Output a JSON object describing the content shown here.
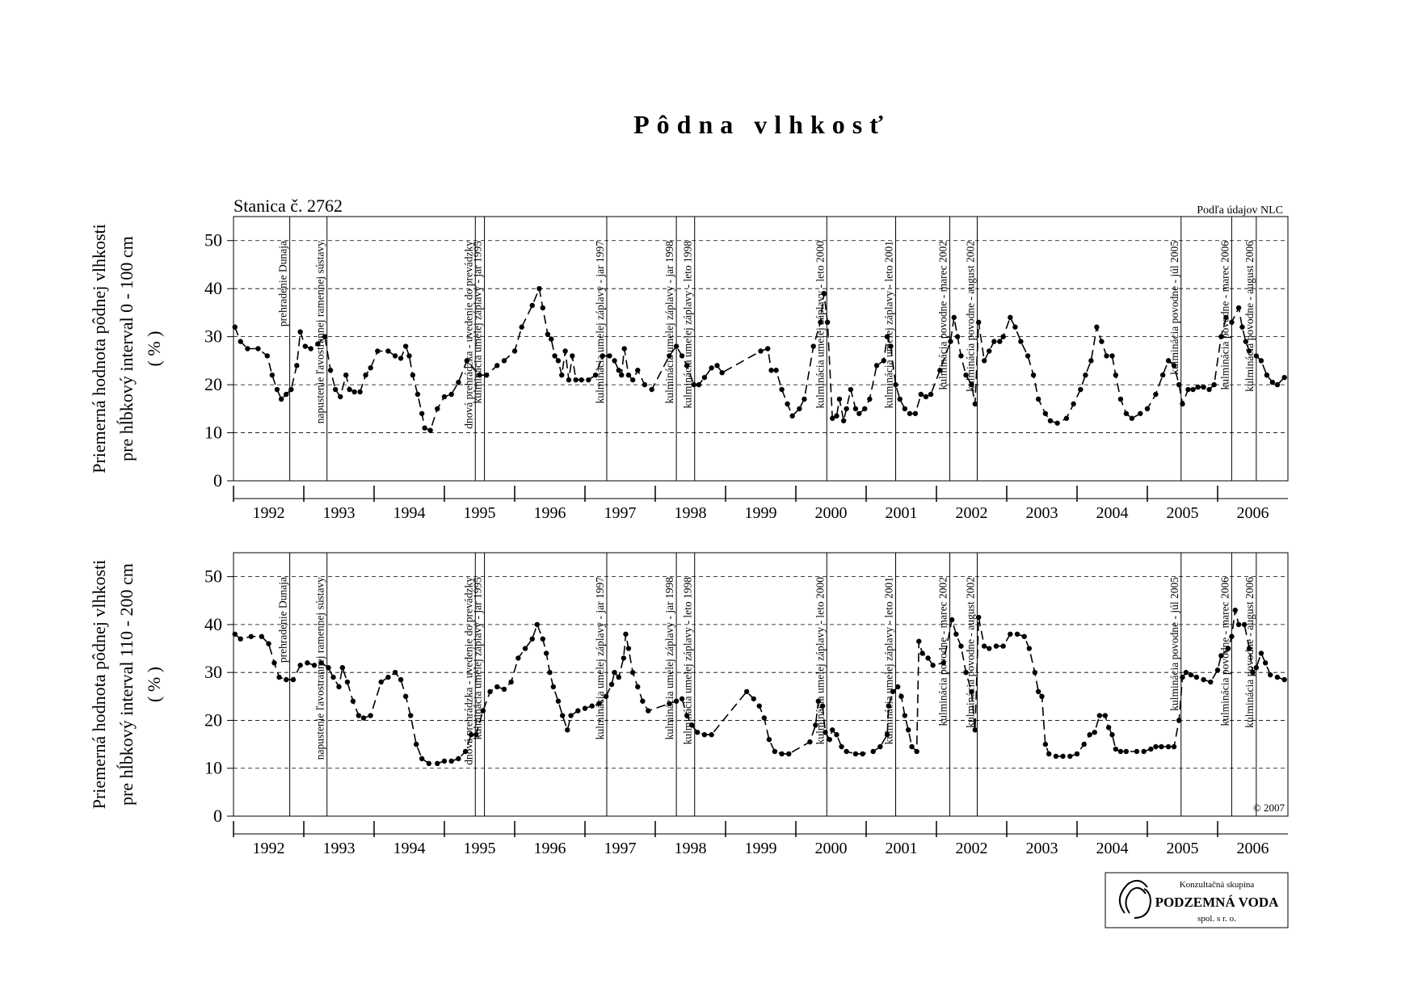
{
  "title": "Pôdna vlhkosť",
  "station": "Stanica č. 2762",
  "source": "Podľa údajov NLC",
  "copyright": "© 2007",
  "logo": {
    "line1": "Konzultačná skupina",
    "line2": "PODZEMNÁ VODA",
    "line3": "spol. s r. o."
  },
  "chart_data": [
    {
      "type": "line",
      "y_label": [
        "Priemerná hodnota pôdnej vlhkosti",
        "pre hĺbkový interval 0 - 100 cm",
        "( % )"
      ],
      "color": "#000000",
      "grid": true,
      "xlim": [
        1992,
        2007
      ],
      "ylim": [
        0,
        55
      ],
      "yticks": [
        0,
        10,
        20,
        30,
        40,
        50
      ],
      "xticks": [
        1992,
        1993,
        1994,
        1995,
        1996,
        1997,
        1998,
        1999,
        2000,
        2001,
        2002,
        2003,
        2004,
        2005,
        2006
      ],
      "annotations": [
        {
          "x": 1992.8,
          "label": "prehradenie Dunaja"
        },
        {
          "x": 1993.33,
          "label": "napustenie ľavostrannej ramennej sústavy"
        },
        {
          "x": 1995.44,
          "label": "dnová prehrádzka - uvedenie do prevádzky"
        },
        {
          "x": 1995.57,
          "label": "kulminácia umelej záplavy - jar 1995"
        },
        {
          "x": 1997.31,
          "label": "kulminácia umelej záplavy - jar 1997"
        },
        {
          "x": 1998.3,
          "label": "kulminácia umelej záplavy - jar 1998"
        },
        {
          "x": 1998.56,
          "label": "kulminácia umelej záplavy - leto 1998"
        },
        {
          "x": 2000.44,
          "label": "kulminácia umelej záplavy - leto 2000"
        },
        {
          "x": 2001.42,
          "label": "kulminácia umelej záplavy - leto 2001"
        },
        {
          "x": 2002.19,
          "label": "kulminácia povodne - marec 2002"
        },
        {
          "x": 2002.58,
          "label": "kulminácia povodne - august 2002"
        },
        {
          "x": 2005.48,
          "label": "kulminácia povodne - júl 2005"
        },
        {
          "x": 2006.2,
          "label": "kulminácia povodne - marec 2006"
        },
        {
          "x": 2006.55,
          "label": "kulminácia povodne - august 2006"
        }
      ],
      "x": [
        1992.02,
        1992.1,
        1992.2,
        1992.35,
        1992.48,
        1992.55,
        1992.62,
        1992.68,
        1992.75,
        1992.82,
        1992.9,
        1992.95,
        1993.02,
        1993.1,
        1993.2,
        1993.3,
        1993.38,
        1993.45,
        1993.52,
        1993.6,
        1993.65,
        1993.72,
        1993.8,
        1993.88,
        1993.95,
        1994.05,
        1994.2,
        1994.3,
        1994.38,
        1994.45,
        1994.5,
        1994.55,
        1994.62,
        1994.68,
        1994.72,
        1994.8,
        1994.9,
        1995.0,
        1995.1,
        1995.2,
        1995.32,
        1995.5,
        1995.6,
        1995.75,
        1995.85,
        1996.0,
        1996.1,
        1996.25,
        1996.35,
        1996.4,
        1996.47,
        1996.52,
        1996.57,
        1996.62,
        1996.67,
        1996.72,
        1996.77,
        1996.82,
        1996.87,
        1996.95,
        1997.05,
        1997.15,
        1997.25,
        1997.35,
        1997.42,
        1997.48,
        1997.52,
        1997.56,
        1997.62,
        1997.68,
        1997.75,
        1997.85,
        1997.95,
        1998.2,
        1998.3,
        1998.38,
        1998.45,
        1998.55,
        1998.62,
        1998.7,
        1998.8,
        1998.88,
        1998.95,
        1999.5,
        1999.6,
        1999.65,
        1999.72,
        1999.8,
        1999.88,
        1999.95,
        2000.05,
        2000.12,
        2000.25,
        2000.35,
        2000.4,
        2000.45,
        2000.52,
        2000.58,
        2000.62,
        2000.68,
        2000.72,
        2000.78,
        2000.85,
        2000.9,
        2000.98,
        2001.05,
        2001.15,
        2001.25,
        2001.3,
        2001.35,
        2001.42,
        2001.48,
        2001.55,
        2001.62,
        2001.7,
        2001.78,
        2001.85,
        2001.92,
        2002.05,
        2002.2,
        2002.25,
        2002.3,
        2002.35,
        2002.42,
        2002.5,
        2002.55,
        2002.6,
        2002.68,
        2002.75,
        2002.82,
        2002.9,
        2002.95,
        2003.05,
        2003.12,
        2003.2,
        2003.3,
        2003.38,
        2003.45,
        2003.55,
        2003.62,
        2003.72,
        2003.85,
        2003.95,
        2004.05,
        2004.12,
        2004.2,
        2004.28,
        2004.35,
        2004.42,
        2004.5,
        2004.55,
        2004.62,
        2004.7,
        2004.78,
        2004.9,
        2005.0,
        2005.12,
        2005.22,
        2005.3,
        2005.38,
        2005.45,
        2005.5,
        2005.58,
        2005.65,
        2005.72,
        2005.8,
        2005.88,
        2005.95,
        2006.05,
        2006.12,
        2006.2,
        2006.3,
        2006.35,
        2006.4,
        2006.45,
        2006.55,
        2006.62,
        2006.7,
        2006.78,
        2006.85,
        2006.95
      ],
      "values": [
        32,
        29,
        27.5,
        27.5,
        26,
        22,
        19,
        17,
        18,
        19,
        24,
        31,
        28,
        27.5,
        28.5,
        30,
        23,
        19,
        17.5,
        22,
        19,
        18.5,
        18.5,
        22,
        23.5,
        27,
        27,
        26,
        25.5,
        28,
        26,
        22,
        18,
        14,
        11,
        10.5,
        15,
        17.5,
        18,
        20.5,
        25,
        22,
        22,
        24,
        25,
        27,
        32,
        36.5,
        40,
        36,
        30.5,
        29.5,
        26,
        25,
        22,
        27,
        21,
        26,
        21,
        21,
        21,
        22,
        26,
        26,
        25,
        23,
        22,
        27.5,
        22,
        21,
        23,
        20,
        19,
        26,
        28,
        26,
        24,
        20,
        20,
        21.5,
        23.5,
        24,
        22.5,
        27,
        27.5,
        23,
        23,
        19,
        16,
        13.5,
        15,
        17,
        28,
        33,
        39,
        33,
        13,
        13.5,
        17,
        12.5,
        15,
        19,
        15,
        14,
        15,
        17,
        24,
        25,
        30,
        28,
        20,
        17,
        15,
        14,
        14,
        18,
        17.5,
        18,
        23,
        29,
        34,
        30,
        26,
        22,
        20,
        16,
        33,
        25,
        27,
        29,
        29,
        30,
        34,
        32,
        29,
        26,
        22,
        17,
        14,
        12.5,
        12,
        13,
        16,
        19,
        22,
        25,
        32,
        29,
        26,
        26,
        22,
        17,
        14,
        13,
        14,
        15,
        18,
        22,
        25,
        24,
        20,
        16,
        19,
        19,
        19.5,
        19.5,
        19,
        20,
        30,
        34,
        33,
        36,
        32,
        29,
        27,
        26,
        25,
        22,
        20.5,
        20,
        21.5
      ]
    },
    {
      "type": "line",
      "y_label": [
        "Priemerná hodnota pôdnej vlhkosti",
        "pre hĺbkový interval 110 - 200 cm",
        "( % )"
      ],
      "color": "#000000",
      "grid": true,
      "xlim": [
        1992,
        2007
      ],
      "ylim": [
        0,
        55
      ],
      "yticks": [
        0,
        10,
        20,
        30,
        40,
        50
      ],
      "xticks": [
        1992,
        1993,
        1994,
        1995,
        1996,
        1997,
        1998,
        1999,
        2000,
        2001,
        2002,
        2003,
        2004,
        2005,
        2006
      ],
      "annotations": [
        {
          "x": 1992.8,
          "label": "prehradenie Dunaja"
        },
        {
          "x": 1993.33,
          "label": "napustenie ľavostrannej ramennej sústavy"
        },
        {
          "x": 1995.44,
          "label": "dnová prehrádzka - uvedenie do prevádzky"
        },
        {
          "x": 1995.57,
          "label": "kulminácia umelej záplavy - jar 1995"
        },
        {
          "x": 1997.31,
          "label": "kulminácia umelej záplavy - jar 1997"
        },
        {
          "x": 1998.3,
          "label": "kulminácia umelej záplavy - jar 1998"
        },
        {
          "x": 1998.56,
          "label": "kulminácia umelej záplavy - leto 1998"
        },
        {
          "x": 2000.44,
          "label": "kulminácia umelej záplavy - leto 2000"
        },
        {
          "x": 2001.42,
          "label": "kulminácia umelej záplavy - leto 2001"
        },
        {
          "x": 2002.19,
          "label": "kulminácia povodne - marec 2002"
        },
        {
          "x": 2002.58,
          "label": "kulminácia povodne - august 2002"
        },
        {
          "x": 2005.48,
          "label": "kulminácia povodne - júl 2005"
        },
        {
          "x": 2006.2,
          "label": "kulminácia povodne - marec 2006"
        },
        {
          "x": 2006.55,
          "label": "kulminácia povodne - august 2006"
        }
      ],
      "x": [
        1992.02,
        1992.1,
        1992.25,
        1992.4,
        1992.5,
        1992.58,
        1992.65,
        1992.75,
        1992.85,
        1992.95,
        1993.05,
        1993.15,
        1993.25,
        1993.35,
        1993.42,
        1993.5,
        1993.55,
        1993.62,
        1993.7,
        1993.78,
        1993.85,
        1993.95,
        1994.1,
        1994.2,
        1994.3,
        1994.38,
        1994.45,
        1994.52,
        1994.6,
        1994.68,
        1994.78,
        1994.9,
        1995.0,
        1995.1,
        1995.2,
        1995.3,
        1995.38,
        1995.45,
        1995.55,
        1995.65,
        1995.75,
        1995.85,
        1995.95,
        1996.05,
        1996.15,
        1996.25,
        1996.32,
        1996.4,
        1996.45,
        1996.5,
        1996.55,
        1996.62,
        1996.68,
        1996.75,
        1996.8,
        1996.9,
        1997.0,
        1997.1,
        1997.2,
        1997.3,
        1997.38,
        1997.42,
        1997.48,
        1997.55,
        1997.58,
        1997.62,
        1997.68,
        1997.75,
        1997.82,
        1997.9,
        1998.2,
        1998.3,
        1998.38,
        1998.45,
        1998.52,
        1998.6,
        1998.7,
        1998.8,
        1999.3,
        1999.4,
        1999.48,
        1999.55,
        1999.62,
        1999.7,
        1999.8,
        1999.9,
        2000.2,
        2000.28,
        2000.32,
        2000.38,
        2000.42,
        2000.48,
        2000.52,
        2000.58,
        2000.65,
        2000.72,
        2000.85,
        2000.95,
        2001.1,
        2001.2,
        2001.3,
        2001.32,
        2001.38,
        2001.45,
        2001.5,
        2001.55,
        2001.6,
        2001.65,
        2001.72,
        2001.75,
        2001.8,
        2001.88,
        2001.95,
        2002.1,
        2002.22,
        2002.28,
        2002.35,
        2002.42,
        2002.5,
        2002.55,
        2002.6,
        2002.68,
        2002.75,
        2002.85,
        2002.95,
        2003.05,
        2003.15,
        2003.25,
        2003.32,
        2003.4,
        2003.45,
        2003.5,
        2003.55,
        2003.6,
        2003.7,
        2003.8,
        2003.9,
        2004.0,
        2004.1,
        2004.18,
        2004.25,
        2004.32,
        2004.4,
        2004.45,
        2004.5,
        2004.55,
        2004.62,
        2004.7,
        2004.85,
        2004.95,
        2005.05,
        2005.12,
        2005.2,
        2005.3,
        2005.38,
        2005.45,
        2005.5,
        2005.55,
        2005.62,
        2005.7,
        2005.8,
        2005.9,
        2006.0,
        2006.05,
        2006.15,
        2006.2,
        2006.25,
        2006.3,
        2006.38,
        2006.45,
        2006.5,
        2006.55,
        2006.62,
        2006.68,
        2006.75,
        2006.85,
        2006.95
      ],
      "values": [
        38,
        37,
        37.5,
        37.5,
        36,
        32,
        29,
        28.5,
        28.5,
        31.5,
        32,
        31.5,
        32,
        31,
        29,
        27,
        31,
        28,
        24,
        21,
        20.5,
        21,
        28,
        29,
        30,
        28.5,
        25,
        21,
        15,
        12,
        11,
        11,
        11.5,
        11.5,
        12,
        13.5,
        17,
        17,
        22,
        26,
        27,
        26.5,
        28,
        33,
        35,
        37,
        40,
        37,
        34,
        30,
        27,
        24,
        21,
        18,
        21,
        22,
        22.5,
        23,
        23.5,
        25,
        27.5,
        30,
        29,
        33,
        38,
        35,
        30,
        27,
        24,
        22,
        23.5,
        24,
        24.5,
        21,
        19,
        17.5,
        17,
        17,
        26,
        24.5,
        23,
        20.5,
        16,
        13.5,
        13,
        13,
        15.5,
        19,
        24,
        23,
        17.5,
        16,
        18,
        17,
        14.5,
        13.5,
        13,
        13,
        13.5,
        14.5,
        17,
        23,
        26,
        27,
        25,
        21,
        18,
        14.5,
        13.5,
        36.5,
        34,
        33,
        31.5,
        32,
        41,
        38,
        35.5,
        30,
        26,
        18,
        41.5,
        35.5,
        35,
        35.5,
        35.5,
        38,
        38,
        37.5,
        35,
        30,
        26,
        25,
        15,
        13,
        12.5,
        12.5,
        12.5,
        13,
        15,
        17,
        17.5,
        21,
        21,
        18.5,
        17,
        14,
        13.5,
        13.5,
        13.5,
        13.5,
        14,
        14.5,
        14.5,
        14.5,
        14.5,
        20,
        29,
        30,
        29.5,
        29,
        28.5,
        28,
        30.5,
        33.5,
        35,
        37.5,
        43,
        40,
        40,
        35,
        30,
        31,
        34,
        32,
        29.5,
        29,
        28.5
      ]
    }
  ]
}
